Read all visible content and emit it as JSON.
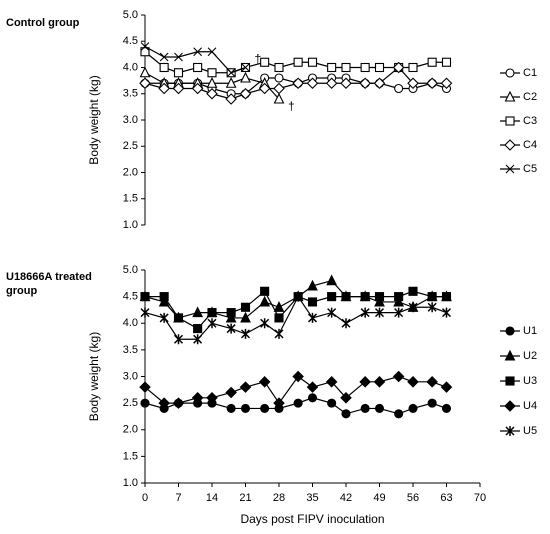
{
  "chart_data": [
    {
      "type": "line",
      "title": "Control group",
      "ylabel": "Body weight (kg)",
      "x": [
        0,
        4,
        7,
        11,
        14,
        18,
        21,
        25,
        28,
        32,
        35,
        39,
        42,
        46,
        49,
        53,
        56,
        60,
        63
      ],
      "xlim": [
        0,
        70
      ],
      "ylim": [
        1,
        5
      ],
      "yticks": [
        {
          "value": 1,
          "label": "1.0"
        },
        {
          "value": 1.5,
          "label": "1.5"
        },
        {
          "value": 2,
          "label": "2.0"
        },
        {
          "value": 2.5,
          "label": "2.5"
        },
        {
          "value": 3,
          "label": "3.0"
        },
        {
          "value": 3.5,
          "label": "3.5"
        },
        {
          "value": 4,
          "label": "4.0"
        },
        {
          "value": 4.5,
          "label": "4.5"
        },
        {
          "value": 5,
          "label": "5.0"
        }
      ],
      "marker_fill": "#ffffff",
      "annotations": [
        "†",
        "†"
      ],
      "series": [
        {
          "name": "C1",
          "color": "#000000",
          "marker": "circle",
          "values": [
            3.7,
            3.7,
            3.7,
            3.7,
            3.6,
            3.5,
            3.5,
            3.8,
            3.8,
            3.7,
            3.8,
            3.8,
            3.8,
            3.7,
            3.7,
            3.6,
            3.6,
            3.7,
            3.6
          ]
        },
        {
          "name": "C2",
          "color": "#000000",
          "marker": "triangle",
          "values": [
            3.9,
            3.7,
            3.7,
            3.7,
            3.7,
            3.7,
            3.8,
            3.7,
            3.4,
            null,
            null,
            null,
            null,
            null,
            null,
            null,
            null,
            null,
            null
          ]
        },
        {
          "name": "C3",
          "color": "#000000",
          "marker": "square",
          "values": [
            4.3,
            4.0,
            3.9,
            4.0,
            3.9,
            3.9,
            4.0,
            4.1,
            4.0,
            4.1,
            4.1,
            4.0,
            4.0,
            4.0,
            4.0,
            4.0,
            4.0,
            4.1,
            4.1
          ]
        },
        {
          "name": "C4",
          "color": "#000000",
          "marker": "diamond",
          "values": [
            3.7,
            3.6,
            3.6,
            3.6,
            3.5,
            3.4,
            3.5,
            3.6,
            3.6,
            3.7,
            3.7,
            3.7,
            3.7,
            3.7,
            3.7,
            4.0,
            3.7,
            3.7,
            3.7
          ]
        },
        {
          "name": "C5",
          "color": "#000000",
          "marker": "x",
          "values": [
            4.4,
            4.2,
            4.2,
            4.3,
            4.3,
            3.9,
            4.0,
            null,
            null,
            null,
            null,
            null,
            null,
            null,
            null,
            null,
            null,
            null,
            null
          ]
        }
      ]
    },
    {
      "type": "line",
      "title": "U18666A treated group",
      "ylabel": "Body weight (kg)",
      "xlabel": "Days post FIPV inoculation",
      "x": [
        0,
        4,
        7,
        11,
        14,
        18,
        21,
        25,
        28,
        32,
        35,
        39,
        42,
        46,
        49,
        53,
        56,
        60,
        63
      ],
      "xlim": [
        0,
        70
      ],
      "xticks": [
        0,
        7,
        14,
        21,
        28,
        35,
        42,
        49,
        56,
        63,
        70
      ],
      "ylim": [
        1,
        5
      ],
      "yticks": [
        {
          "value": 1,
          "label": "1.0"
        },
        {
          "value": 1.5,
          "label": "1.5"
        },
        {
          "value": 2,
          "label": "2.0"
        },
        {
          "value": 2.5,
          "label": "2.5"
        },
        {
          "value": 3,
          "label": "3.0"
        },
        {
          "value": 3.5,
          "label": "3.5"
        },
        {
          "value": 4,
          "label": "4.0"
        },
        {
          "value": 4.5,
          "label": "4.5"
        },
        {
          "value": 5,
          "label": "5.0"
        }
      ],
      "marker_fill": "#000000",
      "series": [
        {
          "name": "U1",
          "color": "#000000",
          "marker": "circle",
          "values": [
            2.5,
            2.4,
            2.5,
            2.5,
            2.5,
            2.4,
            2.4,
            2.4,
            2.4,
            2.5,
            2.6,
            2.5,
            2.3,
            2.4,
            2.4,
            2.3,
            2.4,
            2.5,
            2.4
          ]
        },
        {
          "name": "U2",
          "color": "#000000",
          "marker": "triangle",
          "values": [
            4.5,
            4.4,
            4.1,
            4.2,
            4.2,
            4.1,
            4.1,
            4.4,
            4.3,
            4.5,
            4.7,
            4.8,
            4.5,
            4.5,
            4.4,
            4.4,
            4.3,
            4.5,
            4.5
          ]
        },
        {
          "name": "U3",
          "color": "#000000",
          "marker": "square",
          "values": [
            4.5,
            4.5,
            4.1,
            3.9,
            4.2,
            4.2,
            4.3,
            4.6,
            4.1,
            4.5,
            4.4,
            4.5,
            4.5,
            4.5,
            4.5,
            4.5,
            4.6,
            4.5,
            4.5
          ]
        },
        {
          "name": "U4",
          "color": "#000000",
          "marker": "diamond",
          "values": [
            2.8,
            2.5,
            2.5,
            2.6,
            2.6,
            2.7,
            2.8,
            2.9,
            2.5,
            3.0,
            2.8,
            2.9,
            2.6,
            2.9,
            2.9,
            3.0,
            2.9,
            2.9,
            2.8
          ]
        },
        {
          "name": "U5",
          "color": "#000000",
          "marker": "star",
          "values": [
            4.2,
            4.1,
            3.7,
            3.7,
            4.0,
            3.9,
            3.8,
            4.0,
            3.8,
            4.5,
            4.1,
            4.2,
            4.0,
            4.2,
            4.2,
            4.2,
            4.3,
            4.3,
            4.2
          ]
        }
      ]
    }
  ]
}
